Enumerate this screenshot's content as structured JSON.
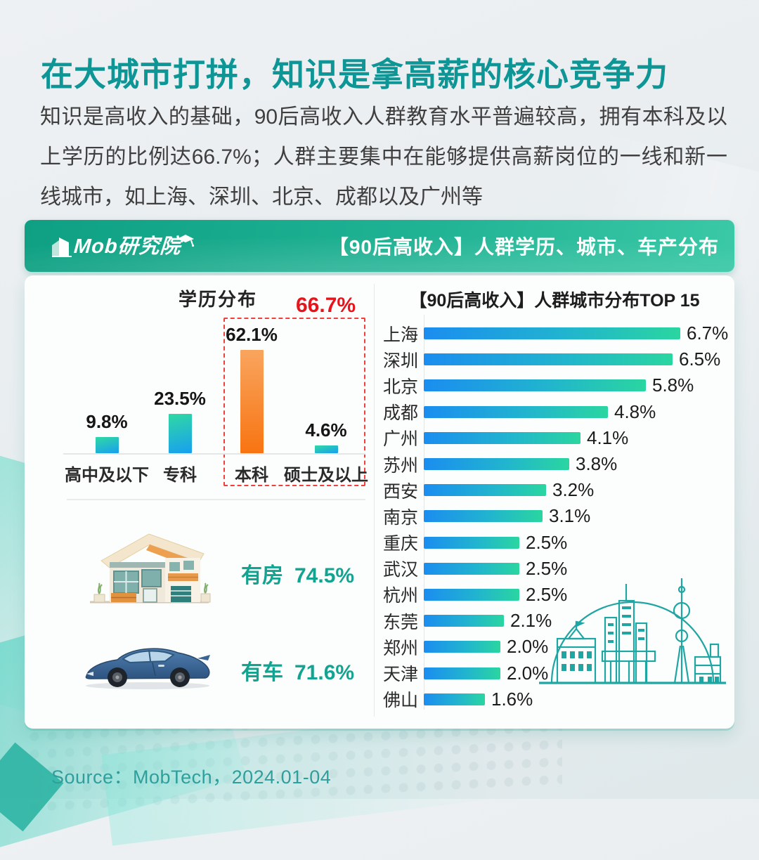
{
  "page": {
    "title": "在大城市打拼，知识是拿高薪的核心竞争力",
    "paragraph": "知识是高收入的基础，90后高收入人群教育水平普遍较高，拥有本科及以上学历的比例达66.7%；人群主要集中在能够提供高薪岗位的一线和新一线城市，如上海、深圳、北京、成都以及广州等",
    "source": "Source：MobTech，2024.01-04"
  },
  "banner": {
    "logo_text": "Mob研究院",
    "title": "【90后高收入】人群学历、城市、车产分布"
  },
  "chart_data": [
    {
      "type": "bar",
      "title": "学历分布",
      "categories": [
        "高中及以下",
        "专科",
        "本科",
        "硕士及以上"
      ],
      "values": [
        9.8,
        23.5,
        62.1,
        4.6
      ],
      "value_labels": [
        "9.8%",
        "23.5%",
        "62.1%",
        "4.6%"
      ],
      "unit": "%",
      "ylim": [
        0,
        70
      ],
      "grid": false,
      "highlight": {
        "label": "66.7%",
        "bar_index": 2,
        "covers": [
          "本科",
          "硕士及以上"
        ],
        "box_style": "red-dashed",
        "label_color": "#e8131b",
        "box_color": "#f0403c"
      },
      "bar_color_default": [
        "#30d9a3",
        "#189ff0"
      ],
      "bar_color_highlight": [
        "#f9a55e",
        "#f87412"
      ]
    },
    {
      "type": "bar",
      "orientation": "horizontal",
      "title": "【90后高收入】人群城市分布TOP 15",
      "categories": [
        "上海",
        "深圳",
        "北京",
        "成都",
        "广州",
        "苏州",
        "西安",
        "南京",
        "重庆",
        "武汉",
        "杭州",
        "东莞",
        "郑州",
        "天津",
        "佛山"
      ],
      "values": [
        6.7,
        6.5,
        5.8,
        4.8,
        4.1,
        3.8,
        3.2,
        3.1,
        2.5,
        2.5,
        2.5,
        2.1,
        2.0,
        2.0,
        1.6
      ],
      "value_labels": [
        "6.7%",
        "6.5%",
        "5.8%",
        "4.8%",
        "4.1%",
        "3.8%",
        "3.2%",
        "3.1%",
        "2.5%",
        "2.5%",
        "2.5%",
        "2.1%",
        "2.0%",
        "2.0%",
        "1.6%"
      ],
      "unit": "%",
      "xlim": [
        0,
        7
      ],
      "grid": false,
      "bar_color": [
        "#1b8df0",
        "#2ad6a0"
      ]
    }
  ],
  "assets": {
    "house": {
      "label": "有房",
      "value": "74.5%"
    },
    "car": {
      "label": "有车",
      "value": "71.6%"
    }
  },
  "icons": {
    "building-icon": "white mob building mark",
    "graduation-cap-icon": "white graduation cap on logo",
    "house-illustration": "flat modern house with orange roof",
    "car-illustration": "blue coupe side view",
    "city-skyline-illustration": "teal line-art shanghai skyline with dome"
  },
  "colors": {
    "accent_teal": "#0e9595",
    "banner_gradient": [
      "#0fa083",
      "#3bc9a7"
    ],
    "highlight_red": "#e8131b",
    "owner_label_teal": "#12a391",
    "source_teal": "#2e9f9c",
    "body_text": "#3f3f3f"
  }
}
